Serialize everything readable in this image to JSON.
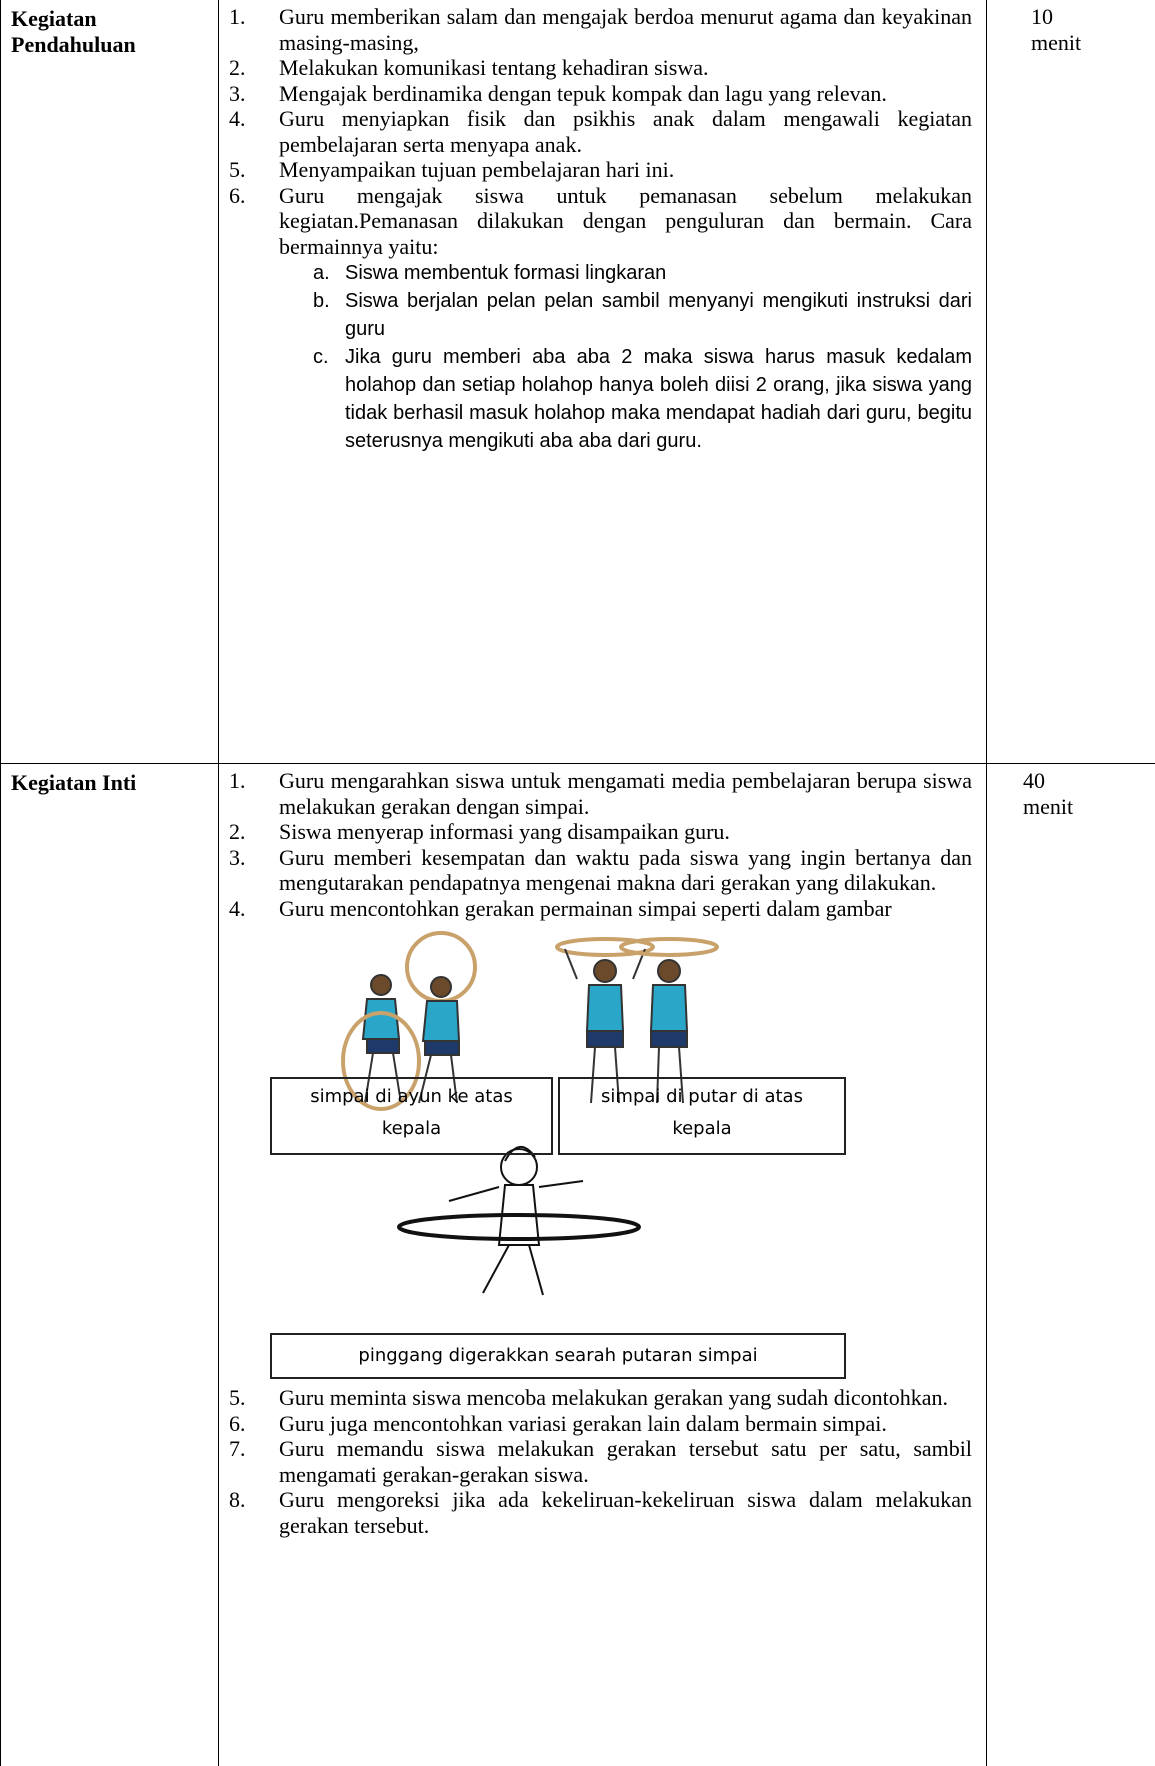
{
  "table": {
    "rows": [
      {
        "activity": "Kegiatan Pendahuluan",
        "time": "10 menit",
        "steps": [
          {
            "number": "1.",
            "text": "Guru memberikan salam dan mengajak berdoa menurut agama dan keyakinan masing-masing,"
          },
          {
            "number": "2.",
            "text": "Melakukan komunikasi  tentang kehadiran siswa."
          },
          {
            "number": "3.",
            "text": "Mengajak berdinamika dengan tepuk kompak dan lagu yang relevan."
          },
          {
            "number": "4.",
            "text": "Guru menyiapkan fisik dan psikhis anak dalam mengawali kegiatan pembelajaran serta menyapa anak."
          },
          {
            "number": "5.",
            "text": "Menyampaikan tujuan pembelajaran hari ini."
          },
          {
            "number": "6.",
            "text": "Guru mengajak siswa untuk pemanasan sebelum melakukan kegiatan.Pemanasan dilakukan dengan penguluran dan bermain. Cara bermainnya yaitu:",
            "substeps": [
              {
                "letter": "a.",
                "text": "Siswa membentuk formasi lingkaran"
              },
              {
                "letter": "b.",
                "text": "Siswa berjalan pelan pelan sambil menyanyi mengikuti instruksi dari guru"
              },
              {
                "letter": "c.",
                "text": "Jika guru memberi aba aba 2 maka siswa harus masuk kedalam holahop dan setiap holahop hanya boleh diisi 2 orang, jika siswa yang tidak berhasil masuk holahop maka mendapat hadiah dari guru, begitu seterusnya mengikuti aba aba dari guru."
              }
            ]
          }
        ]
      },
      {
        "activity": "Kegiatan Inti",
        "time": "40 menit",
        "steps": [
          {
            "number": "1.",
            "text": "Guru mengarahkan siswa untuk mengamati media pembelajaran berupa siswa melakukan gerakan dengan simpai."
          },
          {
            "number": "2.",
            "text": "Siswa menyerap informasi yang disampaikan guru."
          },
          {
            "number": "3.",
            "text": "Guru memberi kesempatan dan waktu pada siswa yang ingin bertanya dan mengutarakan pendapatnya mengenai makna dari gerakan yang dilakukan."
          },
          {
            "number": "4.",
            "text": "Guru mencontohkan gerakan permainan simpai seperti dalam gambar"
          }
        ],
        "figure_captions": [
          "simpai di ayun ke atas kepala",
          "simpai di putar di atas kepala",
          "pinggang digerakkan searah putaran simpai"
        ],
        "steps_after": [
          {
            "number": "5.",
            "text": "Guru meminta siswa mencoba melakukan gerakan yang sudah dicontohkan."
          },
          {
            "number": "6.",
            "text": "Guru juga mencontohkan variasi gerakan lain dalam bermain simpai."
          },
          {
            "number": "7.",
            "text": "Guru memandu siswa melakukan gerakan tersebut satu per satu, sambil mengamati gerakan-gerakan siswa."
          },
          {
            "number": "8.",
            "text": "Guru mengoreksi jika ada kekeliruan-kekeliruan siswa dalam melakukan gerakan tersebut."
          }
        ]
      }
    ]
  }
}
